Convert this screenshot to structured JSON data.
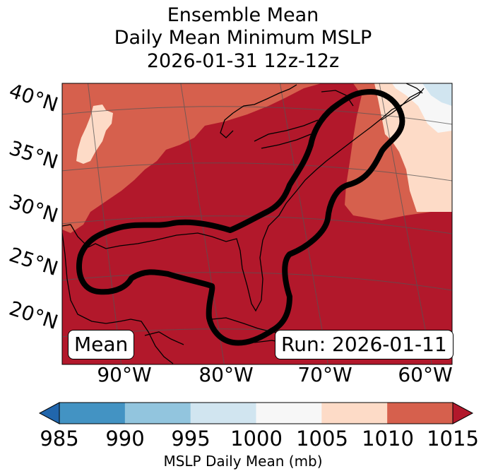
{
  "title_lines": [
    "Ensemble Mean",
    "Daily Mean Minimum MSLP",
    "2026-01-31 12z-12z"
  ],
  "badges": {
    "left": "Mean",
    "right": "Run: 2026-01-11"
  },
  "chart_data": {
    "type": "heatmap",
    "title": "Ensemble Mean Daily Mean Minimum MSLP 2026-01-31 12z-12z",
    "map_extent": {
      "lon_range": [
        -97,
        -59
      ],
      "lat_range": [
        15,
        41
      ]
    },
    "lat_labels": [
      "40°N",
      "35°N",
      "30°N",
      "25°N",
      "20°N"
    ],
    "lon_labels": [
      "90°W",
      "80°W",
      "70°W",
      "60°W"
    ],
    "colorbar": {
      "label": "MSLP Daily Mean (mb)",
      "ticks": [
        "985",
        "990",
        "995",
        "1000",
        "1005",
        "1010",
        "1015"
      ],
      "bins": [
        {
          "range": [
            980,
            985
          ],
          "color": "#2166ac"
        },
        {
          "range": [
            985,
            990
          ],
          "color": "#4393c3"
        },
        {
          "range": [
            990,
            995
          ],
          "color": "#92c5de"
        },
        {
          "range": [
            995,
            1000
          ],
          "color": "#d1e5f0"
        },
        {
          "range": [
            1000,
            1005
          ],
          "color": "#f7f7f7"
        },
        {
          "range": [
            1005,
            1010
          ],
          "color": "#fddbc7"
        },
        {
          "range": [
            1010,
            1015
          ],
          "color": "#d6604d"
        },
        {
          "range": [
            1015,
            1020
          ],
          "color": "#b2182b"
        }
      ],
      "extend": "both"
    },
    "regions": [
      {
        "name": "Gulf of Mexico, Caribbean and Western Atlantic",
        "bin": "1015+",
        "color": "#b2182b"
      },
      {
        "name": "Outer Atlantic and interior US",
        "bin": "1010-1015",
        "color": "#d6604d"
      },
      {
        "name": "Northern Plains patch and Nova Scotia margins",
        "bin": "1005-1010",
        "color": "#fddbc7"
      },
      {
        "name": "Newfoundland corner",
        "bin": "995-1005",
        "color": "#d1e5f0"
      }
    ],
    "contour": {
      "description": "black outline enclosing Gulf of Mexico, Florida, Cuba and US East Coast",
      "color": "#000000"
    }
  }
}
